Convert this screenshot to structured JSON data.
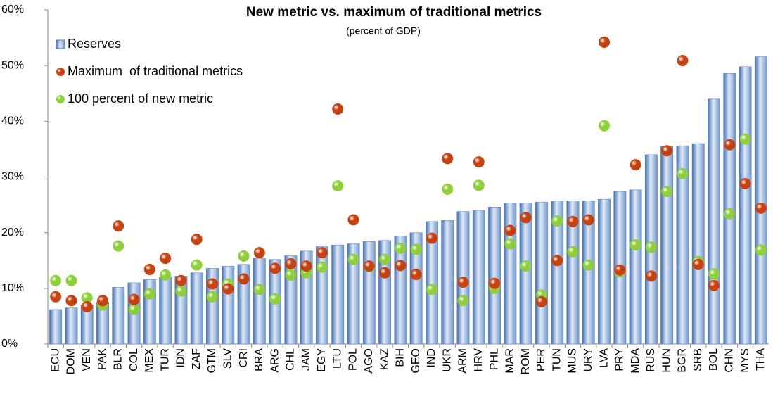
{
  "chart_data": {
    "type": "bar_scatter",
    "title": "New metric vs. maximum of traditional metrics",
    "subtitle": "(percent of GDP)",
    "categories": [
      "ECU",
      "DOM",
      "VEN",
      "PAK",
      "BLR",
      "COL",
      "MEX",
      "TUR",
      "IDN",
      "ZAF",
      "GTM",
      "SLV",
      "CRI",
      "BRA",
      "ARG",
      "CHL",
      "JAM",
      "EGY",
      "LTU",
      "POL",
      "AGO",
      "KAZ",
      "BIH",
      "GEO",
      "IND",
      "UKR",
      "ARM",
      "HRV",
      "PHL",
      "MAR",
      "ROM",
      "PER",
      "TUN",
      "MUS",
      "URY",
      "LVA",
      "PRY",
      "MDA",
      "RUS",
      "HUN",
      "BGR",
      "SRB",
      "BOL",
      "CHN",
      "MYS",
      "THA"
    ],
    "series": [
      {
        "name": "Reserves",
        "kind": "bar",
        "color": "#6f96cf",
        "values": [
          6.2,
          6.5,
          7,
          7.5,
          10.2,
          11,
          11.6,
          12,
          12.2,
          12.8,
          13.6,
          14,
          14.3,
          15.4,
          15.2,
          15.9,
          16.7,
          17.5,
          17.8,
          18,
          18.4,
          18.6,
          19.4,
          20,
          22,
          22.2,
          23.8,
          24,
          24.6,
          25.3,
          25.3,
          25.5,
          25.7,
          25.7,
          25.7,
          26,
          27.4,
          27.7,
          34,
          35.5,
          35.6,
          36,
          44,
          48.6,
          49.8,
          51.6
        ]
      },
      {
        "name": "Maximum  of traditional metrics",
        "kind": "scatter",
        "color": "#c8420f",
        "values": [
          8.5,
          7.8,
          6.7,
          7.8,
          21.2,
          8,
          13.4,
          15.4,
          11.4,
          18.8,
          10.8,
          9.9,
          11.7,
          16.4,
          13.6,
          14.4,
          14,
          16.4,
          42.2,
          22.3,
          14,
          12.8,
          14.1,
          12.5,
          19,
          33.3,
          11.1,
          32.7,
          10.9,
          20.4,
          22.7,
          7.6,
          15,
          22,
          22.3,
          54.2,
          13.3,
          32.2,
          12.2,
          34.7,
          50.9,
          14.3,
          10.5,
          35.8,
          28.8,
          24.4
        ]
      },
      {
        "name": "100 percent of new metric",
        "kind": "scatter",
        "color": "#8fd03a",
        "values": [
          11.4,
          11.4,
          8.3,
          7,
          17.6,
          6.2,
          9,
          12.4,
          9.5,
          14.2,
          8.5,
          10.8,
          15.8,
          9.8,
          8.1,
          12.4,
          12.8,
          13.8,
          28.4,
          15.2,
          13.9,
          15.2,
          17.2,
          17,
          9.8,
          27.8,
          7.8,
          28.5,
          10,
          18,
          14,
          8.8,
          22.1,
          16.6,
          14.2,
          39.2,
          13,
          17.8,
          17.4,
          27.4,
          30.6,
          14.8,
          12.6,
          23.4,
          36.8,
          16.9
        ]
      }
    ],
    "ylim": [
      0,
      60
    ],
    "yticks": [
      {
        "value": 0,
        "label": "0%"
      },
      {
        "value": 10,
        "label": "10%"
      },
      {
        "value": 20,
        "label": "20%"
      },
      {
        "value": 30,
        "label": "30%"
      },
      {
        "value": 40,
        "label": "40%"
      },
      {
        "value": 50,
        "label": "50%"
      },
      {
        "value": 60,
        "label": "60%"
      }
    ],
    "legend": "top-left"
  }
}
